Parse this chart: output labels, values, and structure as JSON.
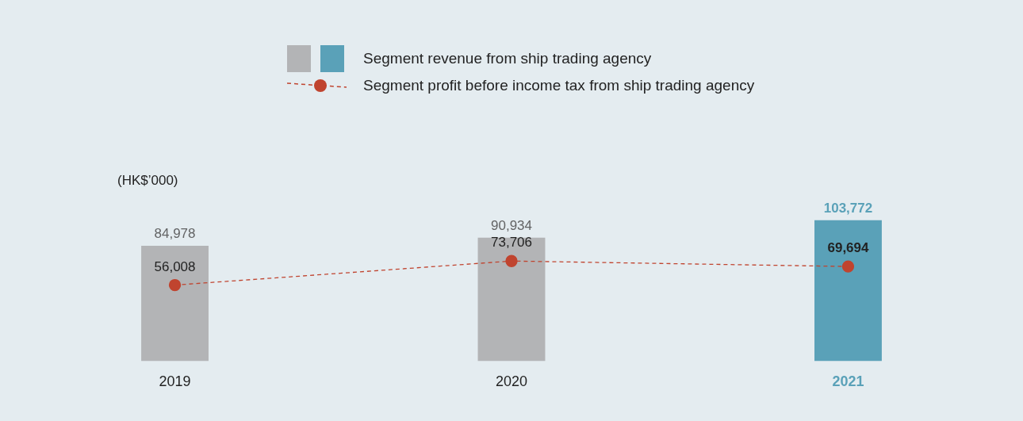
{
  "chart_data": {
    "type": "bar",
    "ylabel": "(HK$’000)",
    "categories": [
      "2019",
      "2020",
      "2021"
    ],
    "series": [
      {
        "name": "Segment revenue from ship trading agency",
        "values": [
          84978,
          90934,
          103772
        ],
        "value_labels": [
          "84,978",
          "90,934",
          "103,772"
        ],
        "colors": [
          "#b3b4b6",
          "#b3b4b6",
          "#5aa1b8"
        ]
      },
      {
        "name": "Segment profit before income tax from ship trading agency",
        "type": "line",
        "color": "#c0442f",
        "values": [
          56008,
          73706,
          69694
        ],
        "value_labels": [
          "56,008",
          "73,706",
          "69,694"
        ]
      }
    ],
    "legend": "top",
    "marker": "circle",
    "line_style": "dashed",
    "grid": false,
    "tick_labels": "x"
  }
}
